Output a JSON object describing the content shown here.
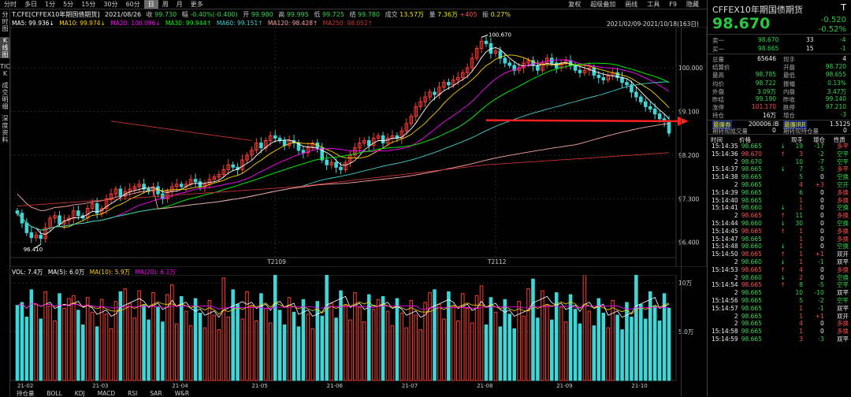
{
  "topbar": {
    "timeframes": [
      "分时",
      "多日",
      "1分",
      "5分",
      "15分",
      "30分",
      "60分",
      "日",
      "周",
      "月",
      "更多"
    ],
    "active_tf": "日",
    "tools": [
      "复权",
      "超级叠加",
      "画线",
      "工具",
      "F9",
      "隐藏"
    ]
  },
  "leftnav": [
    "分时图",
    "K线图",
    "TICK",
    "成交明细",
    "深度资料"
  ],
  "info": {
    "symbol": "T.CFE[CFFEX10年期国债期货]",
    "date": "2021/08/26",
    "close_label": "收",
    "close": "99.730",
    "chg_label": "幅",
    "chg": "-0.40%(-0.400)",
    "open_label": "开",
    "open": "99.980",
    "high_label": "高",
    "high": "99.995",
    "low_label": "低",
    "low": "99.725",
    "settle_label": "结",
    "settle": "99.780",
    "vol_label": "成交",
    "vol": "13.57万",
    "oi_label": "量",
    "oi": "7.36万",
    "oi_chg": "+405",
    "amp_label": "振",
    "amp": "0.27%"
  },
  "ma": {
    "ma5": "MA5: 99.936↓",
    "ma10": "MA10: 99.974↓",
    "ma20": "MA20: 100.096↓",
    "ma30": "MA30: 99.944↑",
    "ma60": "MA60: 99.151↑",
    "ma120": "MA120: 98.428↑",
    "ma250": "MA250: 98.052↑"
  },
  "daterange": "2021/02/09-2021/10/18(163日)",
  "colors": {
    "up": "#ff3b30",
    "down": "#3ed6d6",
    "ma5": "#ffffff",
    "ma10": "#ffd400",
    "ma20": "#ff00ff",
    "ma30": "#00ff00",
    "ma60": "#44cccc",
    "ma120": "#ffa0a0",
    "ma250": "#cc3333",
    "arrow": "#ff2020"
  },
  "chart_data": {
    "type": "candlestick",
    "price_axis": [
      "100.000",
      "99.100",
      "98.200",
      "97.300",
      "96.400"
    ],
    "ylim": [
      96.2,
      100.75
    ],
    "x_labels": [
      "T2109",
      "T2112"
    ],
    "high_label": "100.670",
    "low_label": "96.410",
    "date_axis": [
      "21-02",
      "21-03",
      "21-04",
      "21-05",
      "21-06",
      "21-07",
      "21-08",
      "21-09",
      "21-10"
    ],
    "closes": [
      97.0,
      96.8,
      96.6,
      96.5,
      96.55,
      96.48,
      96.7,
      96.9,
      96.95,
      96.78,
      96.85,
      96.9,
      97.05,
      96.95,
      96.9,
      97.1,
      97.2,
      97.0,
      97.1,
      97.3,
      97.4,
      97.5,
      97.35,
      97.45,
      97.5,
      97.55,
      97.6,
      97.5,
      97.45,
      97.55,
      97.4,
      97.3,
      97.45,
      97.55,
      97.6,
      97.55,
      97.6,
      97.7,
      97.65,
      97.55,
      97.6,
      97.7,
      97.75,
      97.8,
      97.9,
      98.0,
      97.95,
      97.9,
      98.1,
      98.2,
      98.3,
      98.45,
      98.35,
      98.5,
      98.6,
      98.55,
      98.5,
      98.4,
      98.5,
      98.45,
      98.3,
      98.25,
      98.35,
      98.45,
      98.35,
      98.1,
      98.0,
      98.05,
      97.95,
      97.9,
      98.05,
      98.2,
      98.35,
      98.45,
      98.5,
      98.4,
      98.55,
      98.6,
      98.45,
      98.55,
      98.6,
      98.55,
      98.7,
      98.85,
      99.0,
      99.2,
      99.3,
      99.4,
      99.5,
      99.45,
      99.6,
      99.7,
      99.65,
      99.75,
      99.8,
      99.9,
      100.0,
      100.2,
      100.4,
      100.55,
      100.5,
      100.3,
      100.35,
      100.2,
      100.1,
      100.05,
      99.95,
      100.0,
      100.1,
      100.15,
      100.05,
      99.95,
      100.1,
      100.2,
      100.1,
      100.0,
      100.1,
      100.15,
      100.05,
      99.95,
      99.9,
      99.95,
      100.0,
      99.85,
      99.8,
      99.75,
      99.85,
      99.9,
      99.8,
      99.7,
      99.65,
      99.5,
      99.4,
      99.3,
      99.2,
      99.15,
      99.05,
      98.95,
      98.9,
      98.67
    ],
    "volume_axis": [
      "10万",
      "5.0万"
    ],
    "vol_info": {
      "vol": "VOL: 7.4万",
      "ma5": "MA(5): 6.0万",
      "ma10": "MA(10): 5.9万",
      "ma20": "MA(20): 6.1万"
    }
  },
  "indicator_tabs": [
    "持仓量",
    "BOLL",
    "KDJ",
    "MACD",
    "RSI",
    "SAR",
    "W&R"
  ],
  "right": {
    "title": "CFFEX10年期国债期货",
    "T": "T",
    "price": "98.670",
    "chg": "-0.520",
    "chg_pct": "-0.52%",
    "ask": {
      "label": "卖一",
      "price": "98.670",
      "vol": "33",
      "chg": "-4"
    },
    "bid": {
      "label": "买一",
      "price": "98.665",
      "vol": "15",
      "chg": "-1"
    },
    "stats": [
      [
        "总量",
        "65646",
        "现手",
        "4"
      ],
      [
        "结算价",
        "",
        "开盘",
        "98.720"
      ],
      [
        "最高",
        "98.785",
        "最低",
        "98.655"
      ],
      [
        "均价",
        "98.722",
        "振幅",
        "0.13%"
      ],
      [
        "外盘",
        "3.09万",
        "内盘",
        "3.47万"
      ],
      [
        "昨结",
        "99.190",
        "昨收",
        "99.140"
      ],
      [
        "涨停",
        "101.170",
        "跌停",
        "97.210"
      ],
      [
        "持仓",
        "16万",
        "增仓",
        "-3"
      ]
    ],
    "ctd": {
      "label1": "最廉券",
      "value1": "200006.IB",
      "label2": "最廉IRR",
      "value2": "1.5125"
    },
    "delivery": {
      "label1": "期转现成交量",
      "value1": "0",
      "label2": "期转现持仓量",
      "value2": "0"
    },
    "tick_header": [
      "时间",
      "价格",
      "现手",
      "增仓",
      "性质"
    ],
    "ticks": [
      [
        "15:14:35",
        "98.665",
        "↓",
        "19",
        "-17",
        "多平"
      ],
      [
        "15:14:36",
        "98.670",
        "↑",
        "3",
        "-2",
        "空平"
      ],
      [
        "2",
        "98.670",
        "",
        "10",
        "-7",
        "空平"
      ],
      [
        "15:14:37",
        "98.665",
        "↓",
        "7",
        "-5",
        "多平"
      ],
      [
        "15:14:38",
        "98.665",
        "",
        "5",
        "0",
        "空换"
      ],
      [
        "2",
        "98.665",
        "",
        "4",
        "+3",
        "空开"
      ],
      [
        "15:14:39",
        "98.665",
        "",
        "6",
        "0",
        "多换"
      ],
      [
        "15:14:40",
        "98.665",
        "",
        "1",
        "0",
        "多换"
      ],
      [
        "15:14:41",
        "98.660",
        "↓",
        "1",
        "0",
        "空换"
      ],
      [
        "2",
        "98.665",
        "↑",
        "11",
        "0",
        "多换"
      ],
      [
        "15:14:44",
        "98.660",
        "↓",
        "30",
        "0",
        "空换"
      ],
      [
        "15:14:45",
        "98.665",
        "↑",
        "1",
        "0",
        "多换"
      ],
      [
        "15:14:47",
        "98.665",
        "",
        "1",
        "0",
        "多换"
      ],
      [
        "15:14:48",
        "98.660",
        "↓",
        "1",
        "0",
        "空换"
      ],
      [
        "15:14:50",
        "98.665",
        "↑",
        "1",
        "+1",
        "双开"
      ],
      [
        "2",
        "98.660",
        "↓",
        "1",
        "-1",
        "双平"
      ],
      [
        "15:14:53",
        "98.665",
        "↑",
        "4",
        "0",
        "多换"
      ],
      [
        "2",
        "98.660",
        "↓",
        "2",
        "0",
        "空换"
      ],
      [
        "15:14:54",
        "98.665",
        "↑",
        "8",
        "-5",
        "空平"
      ],
      [
        "2",
        "98.665",
        "",
        "10",
        "-10",
        "双平"
      ],
      [
        "15:14:56",
        "98.665",
        "",
        "5",
        "-2",
        "空平"
      ],
      [
        "15:14:57",
        "98.665",
        "",
        "1",
        "-1",
        "双平"
      ],
      [
        "2",
        "98.665",
        "",
        "1",
        "+1",
        "双开"
      ],
      [
        "2",
        "98.665",
        "",
        "4",
        "0",
        "多换"
      ],
      [
        "15:14:58",
        "98.665",
        "",
        "1",
        "0",
        "多换"
      ],
      [
        "15:14:59",
        "98.665",
        "",
        "3",
        "-3",
        "双平"
      ]
    ]
  }
}
